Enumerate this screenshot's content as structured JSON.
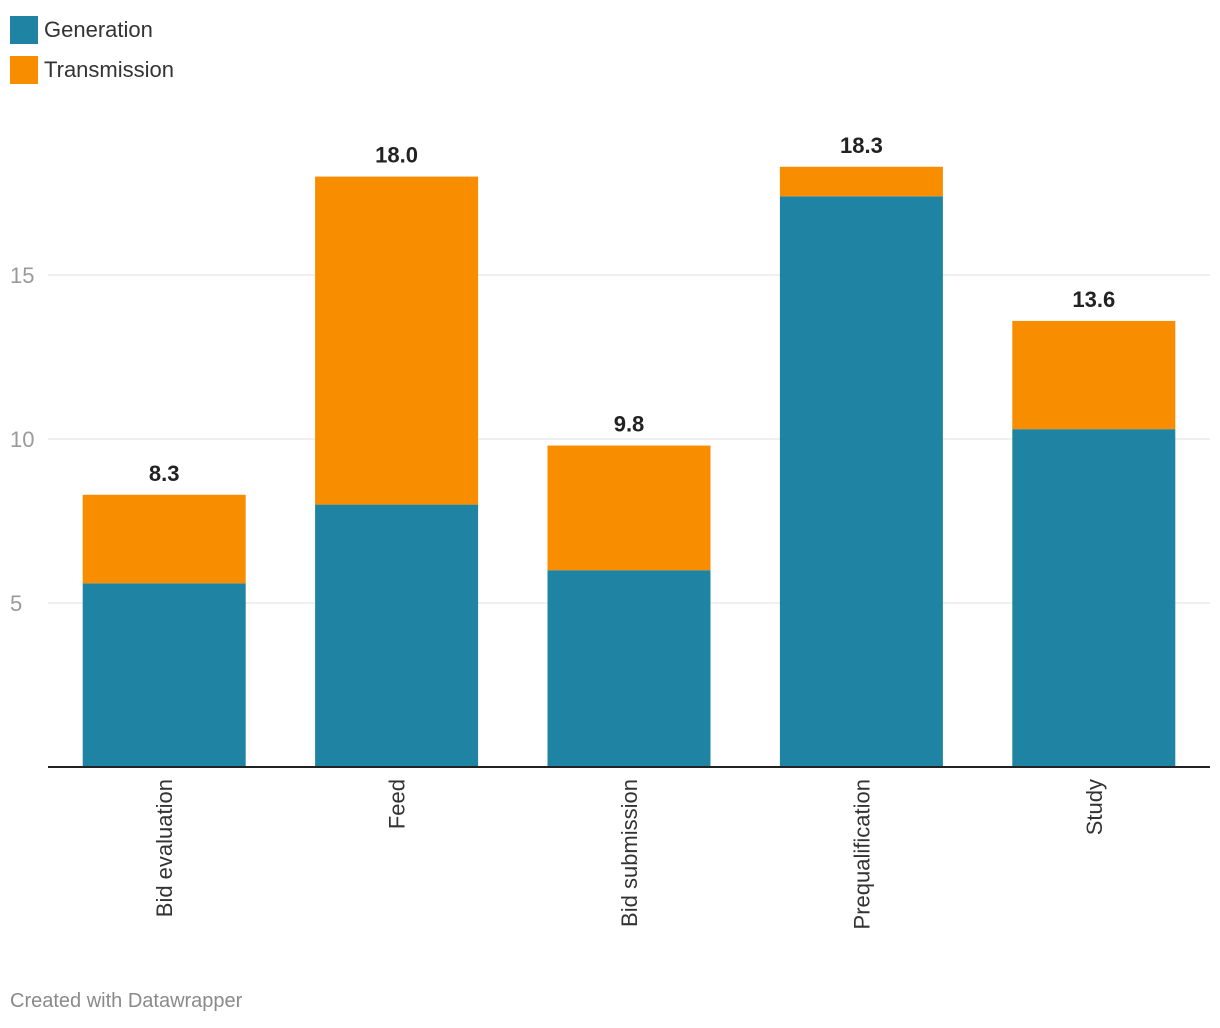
{
  "chart_data": {
    "type": "bar",
    "stacked": true,
    "categories": [
      "Bid evaluation",
      "Feed",
      "Bid submission",
      "Prequalification",
      "Study"
    ],
    "series": [
      {
        "name": "Generation",
        "color": "#1f83a3",
        "values": [
          5.6,
          8.0,
          6.0,
          17.4,
          10.3
        ]
      },
      {
        "name": "Transmission",
        "color": "#f98d00",
        "values": [
          2.7,
          10.0,
          3.8,
          0.9,
          3.3
        ]
      }
    ],
    "totals": [
      "8.3",
      "18.0",
      "9.8",
      "18.3",
      "13.6"
    ],
    "yticks": [
      5,
      10,
      15
    ],
    "ylim": [
      0,
      20
    ],
    "grid": true,
    "legend": "top-left"
  },
  "footer": {
    "text": "Created with Datawrapper"
  }
}
